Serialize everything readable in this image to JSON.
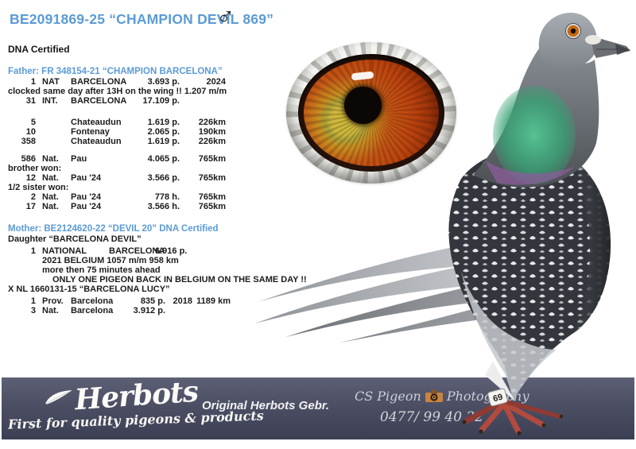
{
  "page": {
    "title": "BE2091869-25 “CHAMPION DEVIL 869”",
    "sex_symbol": "♂",
    "dna_note": "DNA Certified"
  },
  "father": {
    "header": "Father: FR 348154-21 “CHAMPION BARCELONA”",
    "rows": [
      {
        "type": "cols",
        "cells": [
          "1",
          "NAT",
          "BARCELONA",
          "3.693 p.",
          "2024"
        ]
      },
      {
        "type": "note",
        "text": "clocked same day after 13H on the wing !! 1.207 m/m"
      },
      {
        "type": "cols",
        "cells": [
          "31",
          "INT.",
          "BARCELONA",
          "17.109 p.",
          ""
        ]
      },
      {
        "type": "spacer"
      },
      {
        "type": "cols",
        "cells": [
          "5",
          "",
          "Chateaudun",
          "1.619 p.",
          "226km"
        ]
      },
      {
        "type": "cols",
        "cells": [
          "10",
          "",
          "Fontenay",
          "2.065 p.",
          "190km"
        ]
      },
      {
        "type": "cols",
        "cells": [
          "358",
          "",
          "Chateaudun",
          "1.619 p.",
          "226km"
        ]
      },
      {
        "type": "gap"
      },
      {
        "type": "cols",
        "cells": [
          "586",
          "Nat.",
          "Pau",
          "4.065 p.",
          "765km"
        ]
      },
      {
        "type": "note",
        "text": "brother won:"
      },
      {
        "type": "cols",
        "cells": [
          "12",
          "Nat.",
          "Pau '24",
          "3.566 p.",
          "765km"
        ]
      },
      {
        "type": "note",
        "text": "1/2 sister won:"
      },
      {
        "type": "cols",
        "cells": [
          "2",
          "Nat.",
          "Pau '24",
          "778 h.",
          "765km"
        ]
      },
      {
        "type": "cols",
        "cells": [
          "17",
          "Nat.",
          "Pau '24",
          "3.566 h.",
          "765km"
        ]
      }
    ]
  },
  "mother": {
    "header": "Mother: BE2124620-22 “DEVIL 20” DNA Certified",
    "rows": [
      {
        "type": "note",
        "text": "Daughter “BARCELONA DEVIL”"
      },
      {
        "type": "colsB",
        "cells": [
          "1",
          "NATIONAL",
          "BARCELONA",
          "6.916 p."
        ]
      },
      {
        "type": "indent",
        "text": "2021 BELGIUM 1057 m/m  958 km"
      },
      {
        "type": "indent",
        "text": "more then 75 minutes ahead"
      },
      {
        "type": "indent2",
        "text": "ONLY ONE PIGEON BACK IN BELGIUM ON THE SAME DAY !!"
      },
      {
        "type": "note",
        "text": "X NL 1660131-15 “BARCELONA LUCY”"
      },
      {
        "type": "colsM first-m",
        "cells": [
          "1",
          "Prov.",
          "Barcelona",
          "835 p.",
          "2018",
          "1189 km"
        ]
      },
      {
        "type": "colsM",
        "cells": [
          "3",
          "Nat.",
          "Barcelona",
          "3.912 p.",
          "",
          ""
        ]
      }
    ]
  },
  "banner": {
    "logo_text": "Herbots",
    "tagline": "First for quality pigeons & products",
    "center_text": "Original Herbots Gebr.",
    "photo_credit_left": "CS Pigeon",
    "photo_credit_right": "Photography",
    "phone": "0477/ 99 40 22"
  },
  "pigeon": {
    "leg_band": "69"
  },
  "colors": {
    "accent_blue": "#5b9bd5",
    "banner_top": "#5d6075",
    "banner_bottom": "#3c3f53",
    "iris_orange": "#bc430e",
    "foot_red": "#b24a3e"
  }
}
